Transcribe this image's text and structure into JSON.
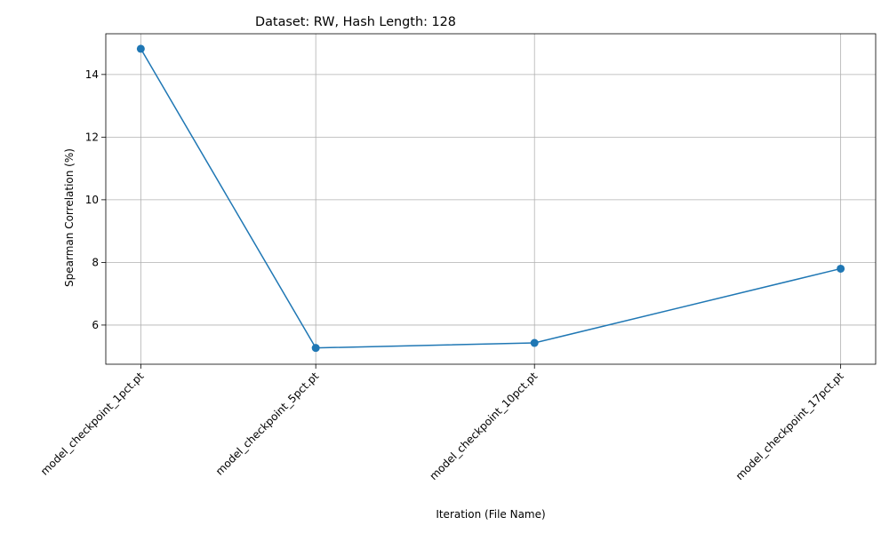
{
  "chart_data": {
    "type": "line",
    "title": "Dataset: RW, Hash Length: 128",
    "xlabel": "Iteration (File Name)",
    "ylabel": "Spearman Correlation (%)",
    "categories": [
      "model_checkpoint_1pct.pt",
      "model_checkpoint_5pct.pt",
      "model_checkpoint_10pct.pt",
      "model_checkpoint_17pct.pt"
    ],
    "x": [
      1,
      5,
      10,
      17
    ],
    "series": [
      {
        "values": [
          14.82,
          5.27,
          5.43,
          7.8
        ]
      }
    ],
    "ylim": [
      4.75,
      15.3
    ],
    "xlim": [
      0.2,
      17.8
    ],
    "yticks": [
      6,
      8,
      10,
      12,
      14
    ],
    "grid": true,
    "marker": "circle",
    "colors": {
      "line": "#1f77b4",
      "grid": "#b0b0b0",
      "axis": "#000000"
    }
  }
}
